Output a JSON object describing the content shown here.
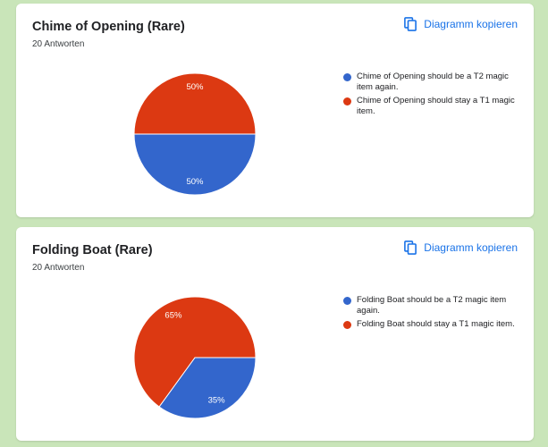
{
  "colors": {
    "blue": "#3366cc",
    "red": "#dc3912",
    "link": "#1a73e8"
  },
  "copy_icon": "copy-icon",
  "cards": [
    {
      "title": "Chime of Opening (Rare)",
      "responses": "20 Antworten",
      "copy_label": "Diagramm kopieren",
      "legend": [
        "Chime of Opening should be a T2 magic item again.",
        "Chime of Opening should stay a T1 magic item."
      ],
      "slice_labels": [
        "50%",
        "50%"
      ]
    },
    {
      "title": "Folding Boat (Rare)",
      "responses": "20 Antworten",
      "copy_label": "Diagramm kopieren",
      "legend": [
        "Folding Boat should be a T2 magic item again.",
        "Folding Boat should stay a T1 magic item."
      ],
      "slice_labels": [
        "35%",
        "65%"
      ]
    }
  ],
  "chart_data": [
    {
      "type": "pie",
      "categories": [
        "Chime of Opening should be a T2 magic item again.",
        "Chime of Opening should stay a T1 magic item."
      ],
      "values": [
        50,
        50
      ],
      "colors": [
        "#3366cc",
        "#dc3912"
      ]
    },
    {
      "type": "pie",
      "categories": [
        "Folding Boat should be a T2 magic item again.",
        "Folding Boat should stay a T1 magic item."
      ],
      "values": [
        35,
        65
      ],
      "colors": [
        "#3366cc",
        "#dc3912"
      ]
    }
  ]
}
